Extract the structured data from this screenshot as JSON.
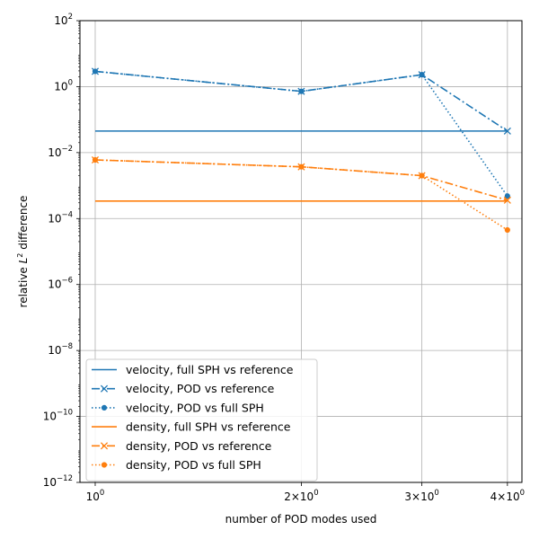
{
  "chart_data": {
    "type": "line",
    "xscale": "log",
    "yscale": "log",
    "xlabel": "number of POD modes used",
    "ylabel_main": "relative ",
    "ylabel_var": "L",
    "ylabel_sup": "2",
    "ylabel_tail": " difference",
    "xlim": [
      0.95,
      4.2
    ],
    "ylim": [
      1e-12,
      100
    ],
    "grid": true,
    "legend_position": "lower-left",
    "x_ticks": [
      {
        "value": 1,
        "base": "10",
        "exp": "0",
        "mult": ""
      },
      {
        "value": 2,
        "base": "10",
        "exp": "0",
        "mult": "2×"
      },
      {
        "value": 3,
        "base": "10",
        "exp": "0",
        "mult": "3×"
      },
      {
        "value": 4,
        "base": "10",
        "exp": "0",
        "mult": "4×"
      }
    ],
    "y_ticks": [
      {
        "value": 1e-12,
        "base": "10",
        "exp": "−12"
      },
      {
        "value": 1e-10,
        "base": "10",
        "exp": "−10"
      },
      {
        "value": 1e-08,
        "base": "10",
        "exp": "−8"
      },
      {
        "value": 1e-06,
        "base": "10",
        "exp": "−6"
      },
      {
        "value": 0.0001,
        "base": "10",
        "exp": "−4"
      },
      {
        "value": 0.01,
        "base": "10",
        "exp": "−2"
      },
      {
        "value": 1,
        "base": "10",
        "exp": "0"
      },
      {
        "value": 100,
        "base": "10",
        "exp": "2"
      }
    ],
    "series": [
      {
        "name": "velocity, full SPH vs reference",
        "color": "#1f77b4",
        "linestyle": "solid",
        "marker": "none",
        "x": [
          1,
          2,
          3,
          4
        ],
        "y": [
          0.045,
          0.045,
          0.045,
          0.045
        ]
      },
      {
        "name": "velocity, POD vs reference",
        "color": "#1f77b4",
        "linestyle": "dashdot",
        "marker": "x",
        "x": [
          1,
          2,
          3,
          4
        ],
        "y": [
          2.9,
          0.72,
          2.3,
          0.045
        ]
      },
      {
        "name": "velocity, POD vs full SPH",
        "color": "#1f77b4",
        "linestyle": "dotted",
        "marker": "dot",
        "x": [
          1,
          2,
          3,
          4
        ],
        "y": [
          2.9,
          0.72,
          2.3,
          0.00048
        ]
      },
      {
        "name": "density, full SPH vs reference",
        "color": "#ff7f0e",
        "linestyle": "solid",
        "marker": "none",
        "x": [
          1,
          2,
          3,
          4
        ],
        "y": [
          0.00034,
          0.00034,
          0.00034,
          0.00034
        ]
      },
      {
        "name": "density, POD vs reference",
        "color": "#ff7f0e",
        "linestyle": "dashdot",
        "marker": "x",
        "x": [
          1,
          2,
          3,
          4
        ],
        "y": [
          0.006,
          0.0037,
          0.002,
          0.00036
        ]
      },
      {
        "name": "density, POD vs full SPH",
        "color": "#ff7f0e",
        "linestyle": "dotted",
        "marker": "dot",
        "x": [
          1,
          2,
          3,
          4
        ],
        "y": [
          0.006,
          0.0037,
          0.002,
          4.5e-05
        ]
      }
    ]
  }
}
